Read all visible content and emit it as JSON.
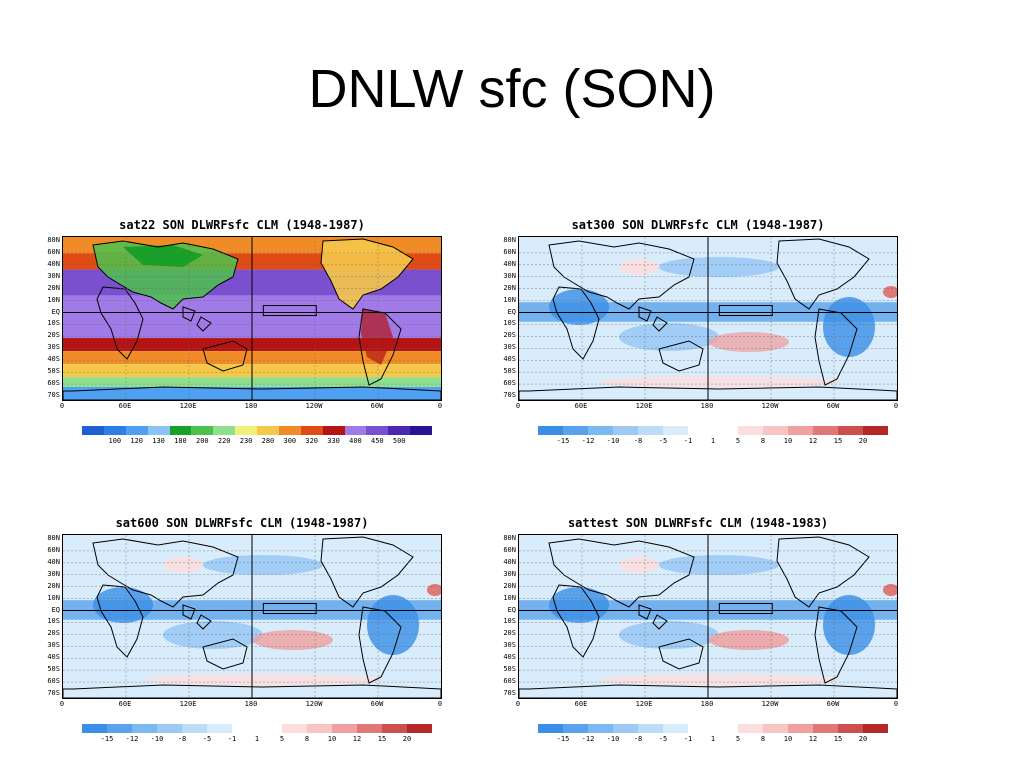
{
  "slide": {
    "title": "DNLW sfc (SON)"
  },
  "lat_labels": [
    "80N",
    "60N",
    "40N",
    "30N",
    "20N",
    "10N",
    "EQ",
    "10S",
    "20S",
    "30S",
    "40S",
    "50S",
    "60S",
    "70S"
  ],
  "lon_labels": [
    "0",
    "60E",
    "120E",
    "180",
    "120W",
    "60W",
    "0"
  ],
  "panels": [
    {
      "title": "sat22 SON DLWRFsfc CLM (1948-1987)",
      "kind": "absolute",
      "colorbar_labels": [
        "100",
        "120",
        "130",
        "180",
        "200",
        "220",
        "230",
        "280",
        "300",
        "320",
        "330",
        "400",
        "450",
        "500"
      ],
      "colorbar_colors": [
        "#1e5fd6",
        "#2f7ee6",
        "#4fa0f0",
        "#8ac4f5",
        "#18a028",
        "#4cc24c",
        "#8ee08e",
        "#f0f07a",
        "#f5c84a",
        "#f08c28",
        "#e04a14",
        "#b41414",
        "#a07ae6",
        "#7a50d0",
        "#4a28b4",
        "#281490"
      ]
    },
    {
      "title": "sat300 SON DLWRFsfc CLM (1948-1987)",
      "kind": "anomaly",
      "colorbar_labels": [
        "-15",
        "-12",
        "-10",
        "-8",
        "-5",
        "-1",
        "1",
        "5",
        "8",
        "10",
        "12",
        "15",
        "20"
      ],
      "colorbar_colors": [
        "#3a8ee6",
        "#5aa2ec",
        "#7cb8f2",
        "#9ccaf5",
        "#bcdcf8",
        "#d8ecfb",
        "#ffffff",
        "#ffffff",
        "#fcdede",
        "#f8c4c4",
        "#f0a0a0",
        "#e07878",
        "#cc5050",
        "#b42828"
      ]
    },
    {
      "title": "sat600 SON DLWRFsfc CLM (1948-1987)",
      "kind": "anomaly",
      "colorbar_labels": [
        "-15",
        "-12",
        "-10",
        "-8",
        "-5",
        "-1",
        "1",
        "5",
        "8",
        "10",
        "12",
        "15",
        "20"
      ],
      "colorbar_colors": [
        "#3a8ee6",
        "#5aa2ec",
        "#7cb8f2",
        "#9ccaf5",
        "#bcdcf8",
        "#d8ecfb",
        "#ffffff",
        "#ffffff",
        "#fcdede",
        "#f8c4c4",
        "#f0a0a0",
        "#e07878",
        "#cc5050",
        "#b42828"
      ]
    },
    {
      "title": "sattest SON DLWRFsfc CLM (1948-1983)",
      "kind": "anomaly",
      "colorbar_labels": [
        "-15",
        "-12",
        "-10",
        "-8",
        "-5",
        "-1",
        "1",
        "5",
        "8",
        "10",
        "12",
        "15",
        "20"
      ],
      "colorbar_colors": [
        "#3a8ee6",
        "#5aa2ec",
        "#7cb8f2",
        "#9ccaf5",
        "#bcdcf8",
        "#d8ecfb",
        "#ffffff",
        "#ffffff",
        "#fcdede",
        "#f8c4c4",
        "#f0a0a0",
        "#e07878",
        "#cc5050",
        "#b42828"
      ]
    }
  ]
}
